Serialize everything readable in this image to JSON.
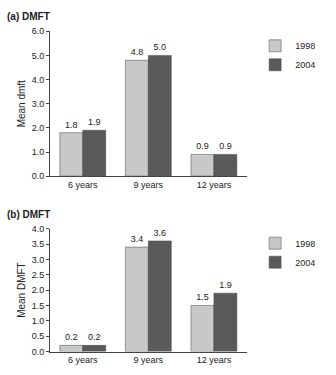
{
  "chart_data": [
    {
      "type": "bar",
      "title": "(a) DMFT",
      "y_label": "Mean dmft",
      "categories": [
        "6 years",
        "9 years",
        "12 years"
      ],
      "series": [
        {
          "name": "1998",
          "color": "#c8c8c8",
          "values": [
            1.8,
            4.8,
            0.9
          ],
          "value_labels": [
            "1.8",
            "4.8",
            "0.9"
          ]
        },
        {
          "name": "2004",
          "color": "#5a5a5a",
          "values": [
            1.9,
            5.0,
            0.9
          ],
          "value_labels": [
            "1.9",
            "5.0",
            "0.9"
          ]
        }
      ],
      "ylim": [
        0,
        6
      ],
      "yticks": [
        {
          "value": 0,
          "label": "0.0"
        },
        {
          "value": 1,
          "label": "1.0"
        },
        {
          "value": 2,
          "label": "2.0"
        },
        {
          "value": 3,
          "label": "3.0"
        },
        {
          "value": 4,
          "label": "4.0"
        },
        {
          "value": 5,
          "label": "5.0"
        },
        {
          "value": 6,
          "label": "6.0"
        }
      ],
      "grid": false,
      "legend": "top right",
      "data_labels": true
    },
    {
      "type": "bar",
      "title": "(b) DMFT",
      "y_label": "Mean DMFT",
      "categories": [
        "6 years",
        "9 years",
        "12 years"
      ],
      "series": [
        {
          "name": "1998",
          "color": "#c8c8c8",
          "values": [
            0.2,
            3.4,
            1.5
          ],
          "value_labels": [
            "0.2",
            "3.4",
            "1.5"
          ]
        },
        {
          "name": "2004",
          "color": "#5a5a5a",
          "values": [
            0.2,
            3.6,
            1.9
          ],
          "value_labels": [
            "0.2",
            "3.6",
            "1.9"
          ]
        }
      ],
      "ylim": [
        0,
        4
      ],
      "yticks": [
        {
          "value": 0,
          "label": "0.0"
        },
        {
          "value": 0.5,
          "label": "0.5"
        },
        {
          "value": 1,
          "label": "1.0"
        },
        {
          "value": 1.5,
          "label": "1.5"
        },
        {
          "value": 2,
          "label": "2.0"
        },
        {
          "value": 2.5,
          "label": "2.5"
        },
        {
          "value": 3,
          "label": "3.0"
        },
        {
          "value": 3.5,
          "label": "3.5"
        },
        {
          "value": 4,
          "label": "4.0"
        }
      ],
      "grid": false,
      "legend": "top right",
      "data_labels": true
    }
  ]
}
